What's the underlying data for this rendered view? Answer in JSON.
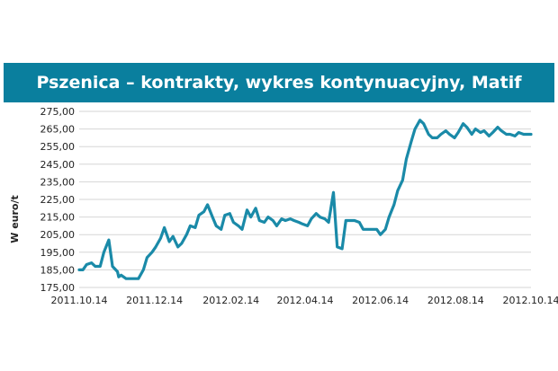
{
  "chart_data": {
    "type": "line",
    "title": "Pszenica – kontrakty, wykres kontynuacyjny, Matif",
    "xlabel": "",
    "ylabel": "W euro/t",
    "ylim": [
      175,
      275
    ],
    "y_ticks": [
      "275,00",
      "265,00",
      "255,00",
      "245,00",
      "235,00",
      "225,00",
      "215,00",
      "205,00",
      "195,00",
      "185,00",
      "175,00"
    ],
    "x_ticks": [
      "2011.10.14",
      "2011.12.14",
      "2012.02.14",
      "2012.04.14",
      "2012.06.14",
      "2012.08.14",
      "2012.10.14"
    ],
    "x_range": [
      "2011.10.14",
      "2012.10.14"
    ],
    "grid": "horizontal",
    "legend": "none",
    "line_color": "#1a8aa8",
    "series": [
      {
        "x": [
          "2011.10.14",
          "2011.10.17",
          "2011.10.20",
          "2011.10.24",
          "2011.10.27",
          "2011.10.31",
          "2011.11.03",
          "2011.11.07",
          "2011.11.10",
          "2011.11.14",
          "2011.11.15",
          "2011.11.17",
          "2011.11.21",
          "2011.11.24",
          "2011.11.28",
          "2011.12.01",
          "2011.12.05",
          "2011.12.08",
          "2011.12.12",
          "2011.12.15",
          "2011.12.19",
          "2011.12.22",
          "2011.12.26",
          "2011.12.29",
          "2012.01.02",
          "2012.01.05",
          "2012.01.09",
          "2012.01.12",
          "2012.01.16",
          "2012.01.19",
          "2012.01.23",
          "2012.01.26",
          "2012.01.30",
          "2012.02.02",
          "2012.02.06",
          "2012.02.09",
          "2012.02.13",
          "2012.02.16",
          "2012.02.20",
          "2012.02.23",
          "2012.02.27",
          "2012.03.01",
          "2012.03.05",
          "2012.03.08",
          "2012.03.12",
          "2012.03.15",
          "2012.03.19",
          "2012.03.22",
          "2012.03.26",
          "2012.03.29",
          "2012.04.02",
          "2012.04.05",
          "2012.04.09",
          "2012.04.12",
          "2012.04.16",
          "2012.04.19",
          "2012.04.23",
          "2012.04.26",
          "2012.04.30",
          "2012.05.03",
          "2012.05.07",
          "2012.05.10",
          "2012.05.14",
          "2012.05.17",
          "2012.05.21",
          "2012.05.24",
          "2012.05.28",
          "2012.05.31",
          "2012.06.04",
          "2012.06.07",
          "2012.06.11",
          "2012.06.14",
          "2012.06.18",
          "2012.06.21",
          "2012.06.25",
          "2012.06.28",
          "2012.07.02",
          "2012.07.05",
          "2012.07.09",
          "2012.07.12",
          "2012.07.16",
          "2012.07.19",
          "2012.07.23",
          "2012.07.26",
          "2012.07.30",
          "2012.08.02",
          "2012.08.06",
          "2012.08.09",
          "2012.08.13",
          "2012.08.16",
          "2012.08.20",
          "2012.08.23",
          "2012.08.27",
          "2012.08.30",
          "2012.09.03",
          "2012.09.06",
          "2012.09.10",
          "2012.09.13",
          "2012.09.17",
          "2012.09.20",
          "2012.09.24",
          "2012.09.27",
          "2012.10.01",
          "2012.10.04",
          "2012.10.08",
          "2012.10.11",
          "2012.10.14"
        ],
        "values": [
          185,
          185,
          188,
          189,
          187,
          187,
          195,
          202,
          187,
          184,
          181,
          182,
          180,
          180,
          180,
          180,
          185,
          192,
          195,
          198,
          203,
          209,
          201,
          204,
          198,
          200,
          205,
          210,
          209,
          216,
          218,
          222,
          215,
          210,
          208,
          216,
          217,
          212,
          210,
          208,
          219,
          215,
          220,
          213,
          212,
          215,
          213,
          210,
          214,
          213,
          214,
          213,
          212,
          211,
          210,
          214,
          217,
          215,
          214,
          212,
          229,
          198,
          197,
          213,
          213,
          213,
          212,
          208,
          208,
          208,
          208,
          205,
          208,
          215,
          222,
          230,
          236,
          248,
          258,
          265,
          270,
          268,
          262,
          260,
          260,
          262,
          264,
          262,
          260,
          263,
          268,
          266,
          262,
          265,
          263,
          264,
          261,
          263,
          266,
          264,
          262,
          262,
          261,
          263,
          262,
          262,
          262
        ]
      }
    ]
  }
}
